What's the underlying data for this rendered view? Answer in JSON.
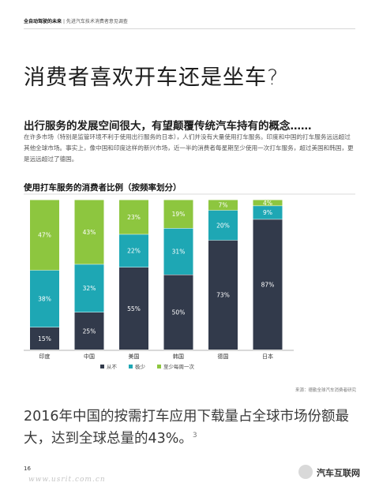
{
  "header": {
    "left": "全自动驾驶的未来",
    "right": "| 先进汽车技术消费者意见调查"
  },
  "page_title": "消费者喜欢开车还是坐车?",
  "subheading": "出行服务的发展空间很大，有望颠覆传统汽车持有的概念……",
  "paragraph": "在许多市场（特别是监管环境不利于使用出行服务的日本），人们并没有大量使用打车服务。印度和中国的打车服务远远超过其他全球市场。事实上，像中国和印度这样的新兴市场，近一半的消费者每星期至少使用一次打车服务，超过美国和韩国，更是远远超过了德国。",
  "chart_data": {
    "type": "bar",
    "stacked": true,
    "title": "使用打车服务的消费者比例（按频率划分）",
    "categories": [
      "印度",
      "中国",
      "美国",
      "韩国",
      "德国",
      "日本"
    ],
    "series": [
      {
        "name": "从不",
        "color": "#323a4b",
        "values": [
          15,
          25,
          55,
          50,
          73,
          87
        ]
      },
      {
        "name": "极少",
        "color": "#1ea7b4",
        "values": [
          38,
          32,
          22,
          31,
          20,
          9
        ]
      },
      {
        "name": "至少每周一次",
        "color": "#8dc63f",
        "values": [
          47,
          43,
          23,
          19,
          7,
          4
        ]
      }
    ],
    "ylim": [
      0,
      100
    ],
    "value_suffix": "%"
  },
  "source": "来源：德勤全球汽车消费者研究",
  "footer_text": "2016年中国的按需打车应用下载量占全球市场份额最大，达到全球总量的43%。",
  "footer_ref": "3",
  "page_number": "16",
  "watermark_url": "www.usrit.com.cn",
  "watermark_brand": "汽车互联网"
}
